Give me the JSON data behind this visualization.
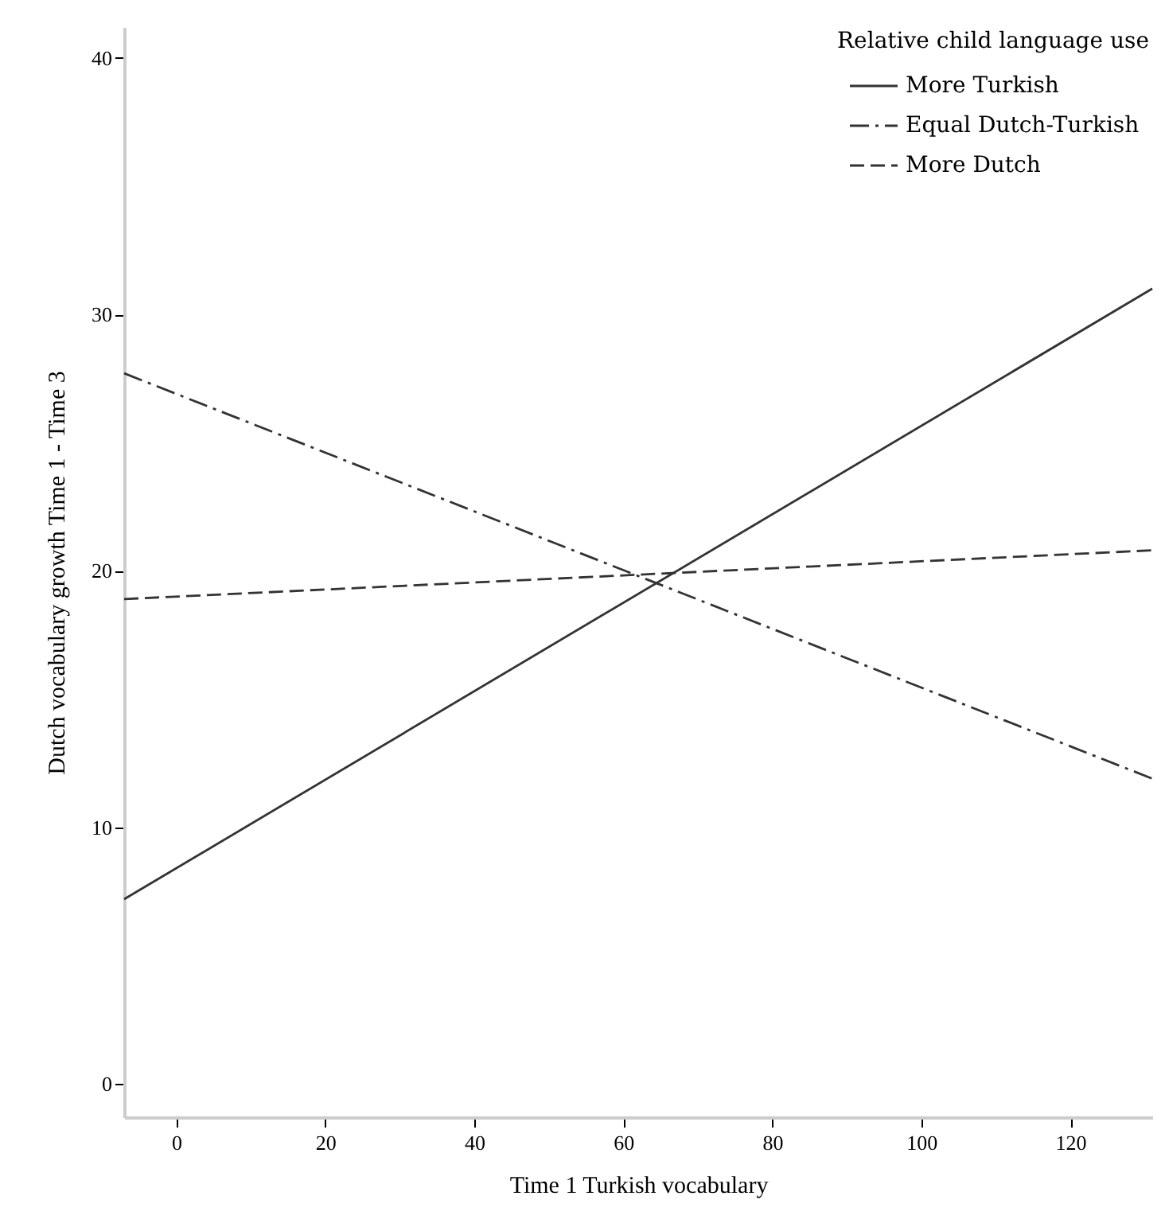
{
  "chart_data": {
    "type": "line",
    "xlabel": "Time 1 Turkish vocabulary",
    "ylabel": "Dutch vocabulary growth Time 1 - Time 3",
    "legend_title": "Relative child language use",
    "legend": "top right",
    "grid": false,
    "marker": "none",
    "xlim": [
      -7,
      131
    ],
    "xticks": [
      0,
      20,
      40,
      60,
      80,
      100,
      120
    ],
    "ylim": [
      -1.3,
      41.2
    ],
    "yticks": [
      0,
      10,
      20,
      30,
      40
    ],
    "x": [
      -7,
      131
    ],
    "series": [
      {
        "name": "More Turkish",
        "color": "#333333",
        "line_style": "solid",
        "values": [
          7.2,
          31.0
        ]
      },
      {
        "name": "Equal Dutch-Turkish",
        "color": "#333333",
        "line_style": "dashdot",
        "values": [
          27.7,
          11.9
        ]
      },
      {
        "name": "More Dutch",
        "color": "#333333",
        "line_style": "dashed",
        "values": [
          18.9,
          20.8
        ]
      }
    ]
  }
}
